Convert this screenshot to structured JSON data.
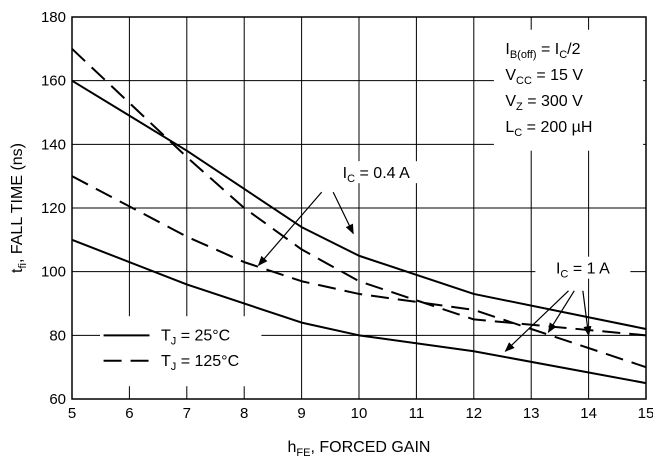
{
  "chart_data": {
    "type": "line",
    "title": "",
    "xlabel": {
      "main": "h",
      "sub": "FE",
      "rest": ", FORCED GAIN"
    },
    "ylabel": {
      "main": "t",
      "sub": "fi",
      "rest": ", FALL TIME (ns)"
    },
    "xlim": [
      5,
      15
    ],
    "ylim": [
      60,
      180
    ],
    "x_ticks": [
      5,
      6,
      7,
      8,
      9,
      10,
      11,
      12,
      13,
      14,
      15
    ],
    "y_ticks": [
      60,
      80,
      100,
      120,
      140,
      160,
      180
    ],
    "grid": true,
    "series": [
      {
        "name": "TJ = 25°C, IC = 0.4 A",
        "dash": "solid",
        "color": "#000000",
        "x": [
          5,
          7,
          9,
          10,
          12,
          15
        ],
        "y": [
          160,
          138,
          114,
          105,
          93,
          82
        ]
      },
      {
        "name": "TJ = 25°C, IC = 1 A",
        "dash": "solid",
        "color": "#000000",
        "x": [
          5,
          7,
          9,
          10,
          12,
          15
        ],
        "y": [
          110,
          96,
          84,
          80,
          75,
          65
        ]
      },
      {
        "name": "TJ = 125°C, IC = 0.4 A",
        "dash": "dashed",
        "color": "#000000",
        "x": [
          5,
          6,
          7,
          8,
          9,
          10,
          12,
          15
        ],
        "y": [
          170,
          153,
          136,
          120,
          107,
          97,
          85,
          80
        ]
      },
      {
        "name": "TJ = 125°C, IC = 1 A",
        "dash": "dashed",
        "color": "#000000",
        "x": [
          5,
          7,
          8,
          9,
          10,
          12,
          15
        ],
        "y": [
          130,
          111,
          103,
          97,
          93,
          88,
          70
        ]
      }
    ],
    "legend": {
      "placement": "bottom-left",
      "entries": [
        {
          "dash": "solid",
          "main": "T",
          "sub": "J",
          "rest": " = 25°C"
        },
        {
          "dash": "dashed",
          "main": "T",
          "sub": "J",
          "rest": " = 125°C"
        }
      ]
    },
    "conditions": [
      {
        "main": "I",
        "sub": "B(off)",
        "rest": " = I",
        "sub2": "C",
        "rest2": "/2"
      },
      {
        "main": "V",
        "sub": "CC",
        "rest": " = 15 V"
      },
      {
        "main": "V",
        "sub": "Z",
        "rest": " = 300 V"
      },
      {
        "main": "L",
        "sub": "C",
        "rest": " = 200 µH"
      }
    ],
    "annotations": [
      {
        "main": "I",
        "sub": "C",
        "rest": " = 0.4 A",
        "anchor": [
          10.3,
          130
        ],
        "arrows": [
          {
            "from": [
              9.35,
              125
            ],
            "to": [
              8.25,
              102
            ]
          },
          {
            "from": [
              9.55,
              125
            ],
            "to": [
              9.9,
              112
            ]
          }
        ]
      },
      {
        "main": "I",
        "sub": "C",
        "rest": " = 1 A",
        "anchor": [
          13.9,
          100
        ],
        "arrows": [
          {
            "from": [
              13.65,
              94
            ],
            "to": [
              12.55,
              75
            ]
          },
          {
            "from": [
              13.75,
              94
            ],
            "to": [
              13.3,
              81
            ]
          },
          {
            "from": [
              13.9,
              94
            ],
            "to": [
              14.0,
              80
            ]
          }
        ]
      }
    ]
  }
}
